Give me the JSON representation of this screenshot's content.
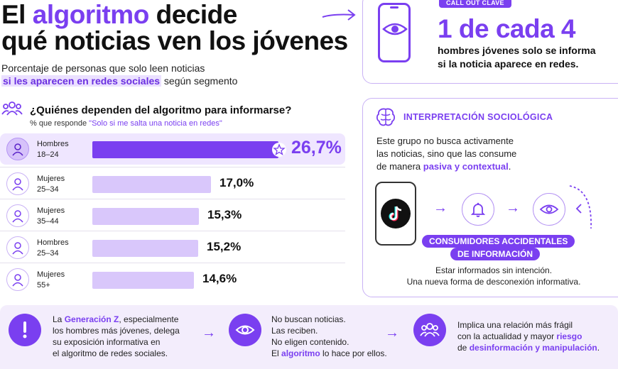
{
  "header": {
    "title_pre": "El ",
    "title_accent": "algoritmo",
    "title_post": " decide",
    "title_line2": "qué noticias ven los jóvenes",
    "subtitle_line1": "Porcentaje de personas que solo leen noticias",
    "subtitle_highlight": "si les aparecen en redes sociales",
    "subtitle_rest": " según segmento"
  },
  "callout": {
    "tag": "CALL OUT CLAVE",
    "stat": "1 de cada 4",
    "desc_line1": "hombres jóvenes solo se informa",
    "desc_line2": "si la noticia aparece en redes."
  },
  "question": {
    "title": "¿Quiénes dependen del algoritmo para informarse?",
    "sub_prefix": "% que responde ",
    "sub_quote": "\"Solo si me salta una noticia en redes\""
  },
  "chart_data": {
    "type": "bar",
    "categories": [
      "Hombres 18–24",
      "Mujeres 25–34",
      "Mujeres 35–44",
      "Hombres 25–34",
      "Mujeres 55+"
    ],
    "values": [
      26.7,
      17.0,
      15.3,
      15.2,
      14.6
    ],
    "title": "¿Quiénes dependen del algoritmo para informarse?",
    "xlabel": "",
    "ylabel": "",
    "highlight_index": 0
  },
  "rows": [
    {
      "group": "Hombres",
      "age": "18–24",
      "value_label": "26,7%"
    },
    {
      "group": "Mujeres",
      "age": "25–34",
      "value_label": "17,0%"
    },
    {
      "group": "Mujeres",
      "age": "35–44",
      "value_label": "15,3%"
    },
    {
      "group": "Hombres",
      "age": "25–34",
      "value_label": "15,2%"
    },
    {
      "group": "Mujeres",
      "age": "55+",
      "value_label": "14,6%"
    }
  ],
  "interpretation": {
    "title": "INTERPRETACIÓN SOCIOLÓGICA",
    "line1": "Este grupo no busca activamente",
    "line2": "las noticias, sino que las consume",
    "line3_pre": "de manera ",
    "line3_accent": "pasiva y contextual",
    "line3_post": ".",
    "pill_line1": "CONSUMIDORES ACCIDENTALES",
    "pill_line2": "DE INFORMACIÓN",
    "caption_line1": "Estar informados sin intención.",
    "caption_line2": "Una nueva forma de desconexión informativa."
  },
  "bottom": {
    "col1": {
      "l1_pre": "La ",
      "l1_accent": "Generación Z",
      "l1_post": ", especialmente",
      "l2": "los hombres más jóvenes, delega",
      "l3": "su exposición informativa en",
      "l4": "el algoritmo de redes sociales."
    },
    "col2": {
      "l1": "No buscan noticias.",
      "l2": "Las reciben.",
      "l3": "No eligen contenido.",
      "l4_pre": "El ",
      "l4_accent": "algoritmo",
      "l4_post": " lo hace por ellos."
    },
    "col3": {
      "l1": "Implica una relación más frágil",
      "l2_pre": "con la actualidad y mayor ",
      "l2_accent": "riesgo",
      "l3_pre": "de ",
      "l3_accent": "desinformación y manipulación",
      "l3_post": "."
    }
  },
  "colors": {
    "accent": "#7a3ff0",
    "accent_light": "#d9c7fb",
    "highlight_bg": "#efe6ff"
  },
  "icons": [
    "arrow-right-icon",
    "eye-icon",
    "people-icon",
    "person-icon",
    "star-icon",
    "brain-icon",
    "tiktok-icon",
    "bell-icon",
    "alert-icon",
    "group-icon"
  ]
}
